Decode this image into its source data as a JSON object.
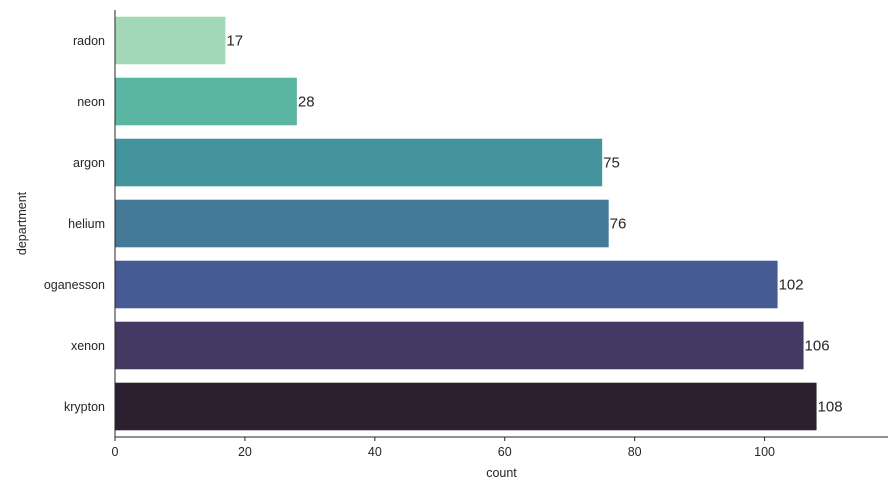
{
  "chart_data": {
    "type": "bar",
    "orientation": "horizontal",
    "categories": [
      "radon",
      "neon",
      "argon",
      "helium",
      "oganesson",
      "xenon",
      "krypton"
    ],
    "values": [
      17,
      28,
      75,
      76,
      102,
      106,
      108
    ],
    "colors": [
      "#a2d8b8",
      "#5ab6a2",
      "#43949d",
      "#437897",
      "#465a94",
      "#443962",
      "#2b1f30"
    ],
    "xlabel": "count",
    "ylabel": "department",
    "xlim": [
      0,
      119
    ],
    "xticks": [
      0,
      20,
      40,
      60,
      80,
      100
    ],
    "grid": false,
    "legend": "none",
    "data_labels": true
  }
}
